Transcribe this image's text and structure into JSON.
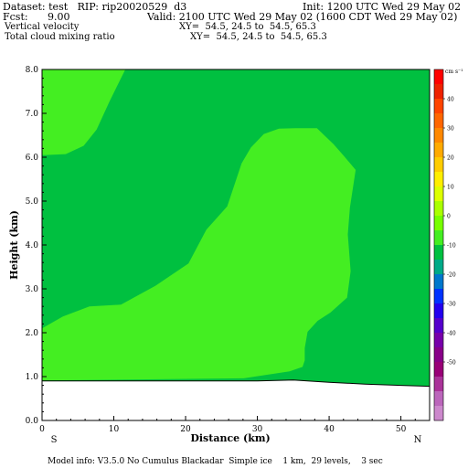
{
  "header": {
    "dataset_line": "Dataset: test   RIP: rip20020529  d3",
    "init_line": "Init: 1200 UTC Wed 29 May 02",
    "fcst_label": "Fcst:",
    "fcst_value": "9.00",
    "valid_line": "Valid: 2100 UTC Wed 29 May 02 (1600 CDT Wed 29 May 02)",
    "field1_name": "Vertical velocity",
    "field1_xy": "XY=  54.5, 24.5 to  54.5, 65.3",
    "field2_name": "Total cloud mixing ratio",
    "field2_xy": "XY=  54.5, 24.5 to  54.5, 65.3"
  },
  "footer": {
    "model_info": "Model info: V3.5.0 No Cumulus Blackadar  Simple ice    1 km,  29 levels,    3 sec"
  },
  "colors": {
    "background_fill": "#00c040",
    "contour_fill": "#44ee22",
    "terrain": "#ffffff"
  },
  "chart_data": {
    "type": "area",
    "xlabel": "Distance (km)",
    "ylabel": "Height (km)",
    "xlim": [
      0,
      54
    ],
    "ylim": [
      0,
      8
    ],
    "x_ticks": [
      0,
      10,
      20,
      30,
      40,
      50
    ],
    "y_ticks": [
      "0.0",
      "1.0",
      "2.0",
      "3.0",
      "4.0",
      "5.0",
      "6.0",
      "7.0",
      "8.0"
    ],
    "x_endpoints": {
      "left": "S",
      "right": "N"
    },
    "terrain_profile": {
      "x": [
        0,
        10,
        20,
        30,
        35,
        40,
        45,
        50,
        54
      ],
      "y": [
        0.9,
        0.9,
        0.9,
        0.9,
        0.92,
        0.87,
        0.83,
        0.8,
        0.78
      ]
    },
    "regions": [
      {
        "name": "upper-left",
        "x": [
          0,
          11.6,
          9.4,
          7.6,
          5.8,
          3.3,
          0.5,
          0
        ],
        "y": [
          8,
          8,
          7.27,
          6.63,
          6.26,
          6.07,
          6.05,
          6.05
        ]
      },
      {
        "name": "central-plume",
        "x": [
          0,
          0,
          2.9,
          6.6,
          11,
          15.8,
          20.4,
          22.9,
          25.8,
          27.8,
          29.1,
          30.9,
          33,
          35.3,
          38.3,
          40.6,
          42,
          43.7,
          42.9,
          42.6,
          43,
          42.5,
          40.2,
          38.4,
          37,
          36.6,
          36.6,
          36.3,
          34.5,
          28.1,
          0
        ],
        "y": [
          0.91,
          2.1,
          2.37,
          2.6,
          2.64,
          3.07,
          3.58,
          4.35,
          4.88,
          5.86,
          6.22,
          6.53,
          6.65,
          6.66,
          6.66,
          6.3,
          6.04,
          5.71,
          4.85,
          4.24,
          3.4,
          2.8,
          2.46,
          2.27,
          2.02,
          1.65,
          1.37,
          1.22,
          1.12,
          0.96,
          0.91
        ]
      }
    ],
    "colorbar": {
      "unit": "cm s⁻¹",
      "labels": [
        "40",
        "30",
        "20",
        "10",
        "0",
        "-10",
        "-20",
        "-30",
        "-40",
        "-50"
      ],
      "colors": [
        "#ff0000",
        "#ee2200",
        "#ff4400",
        "#ff6600",
        "#ff8800",
        "#ffaa00",
        "#ffcc00",
        "#ffee00",
        "#ddff00",
        "#aaff00",
        "#77ff00",
        "#44ee22",
        "#00c040",
        "#00aa88",
        "#0077cc",
        "#0033ff",
        "#2200ee",
        "#5500cc",
        "#7700aa",
        "#880088",
        "#990077",
        "#aa3399",
        "#bb66bb",
        "#cc88cc"
      ]
    }
  }
}
